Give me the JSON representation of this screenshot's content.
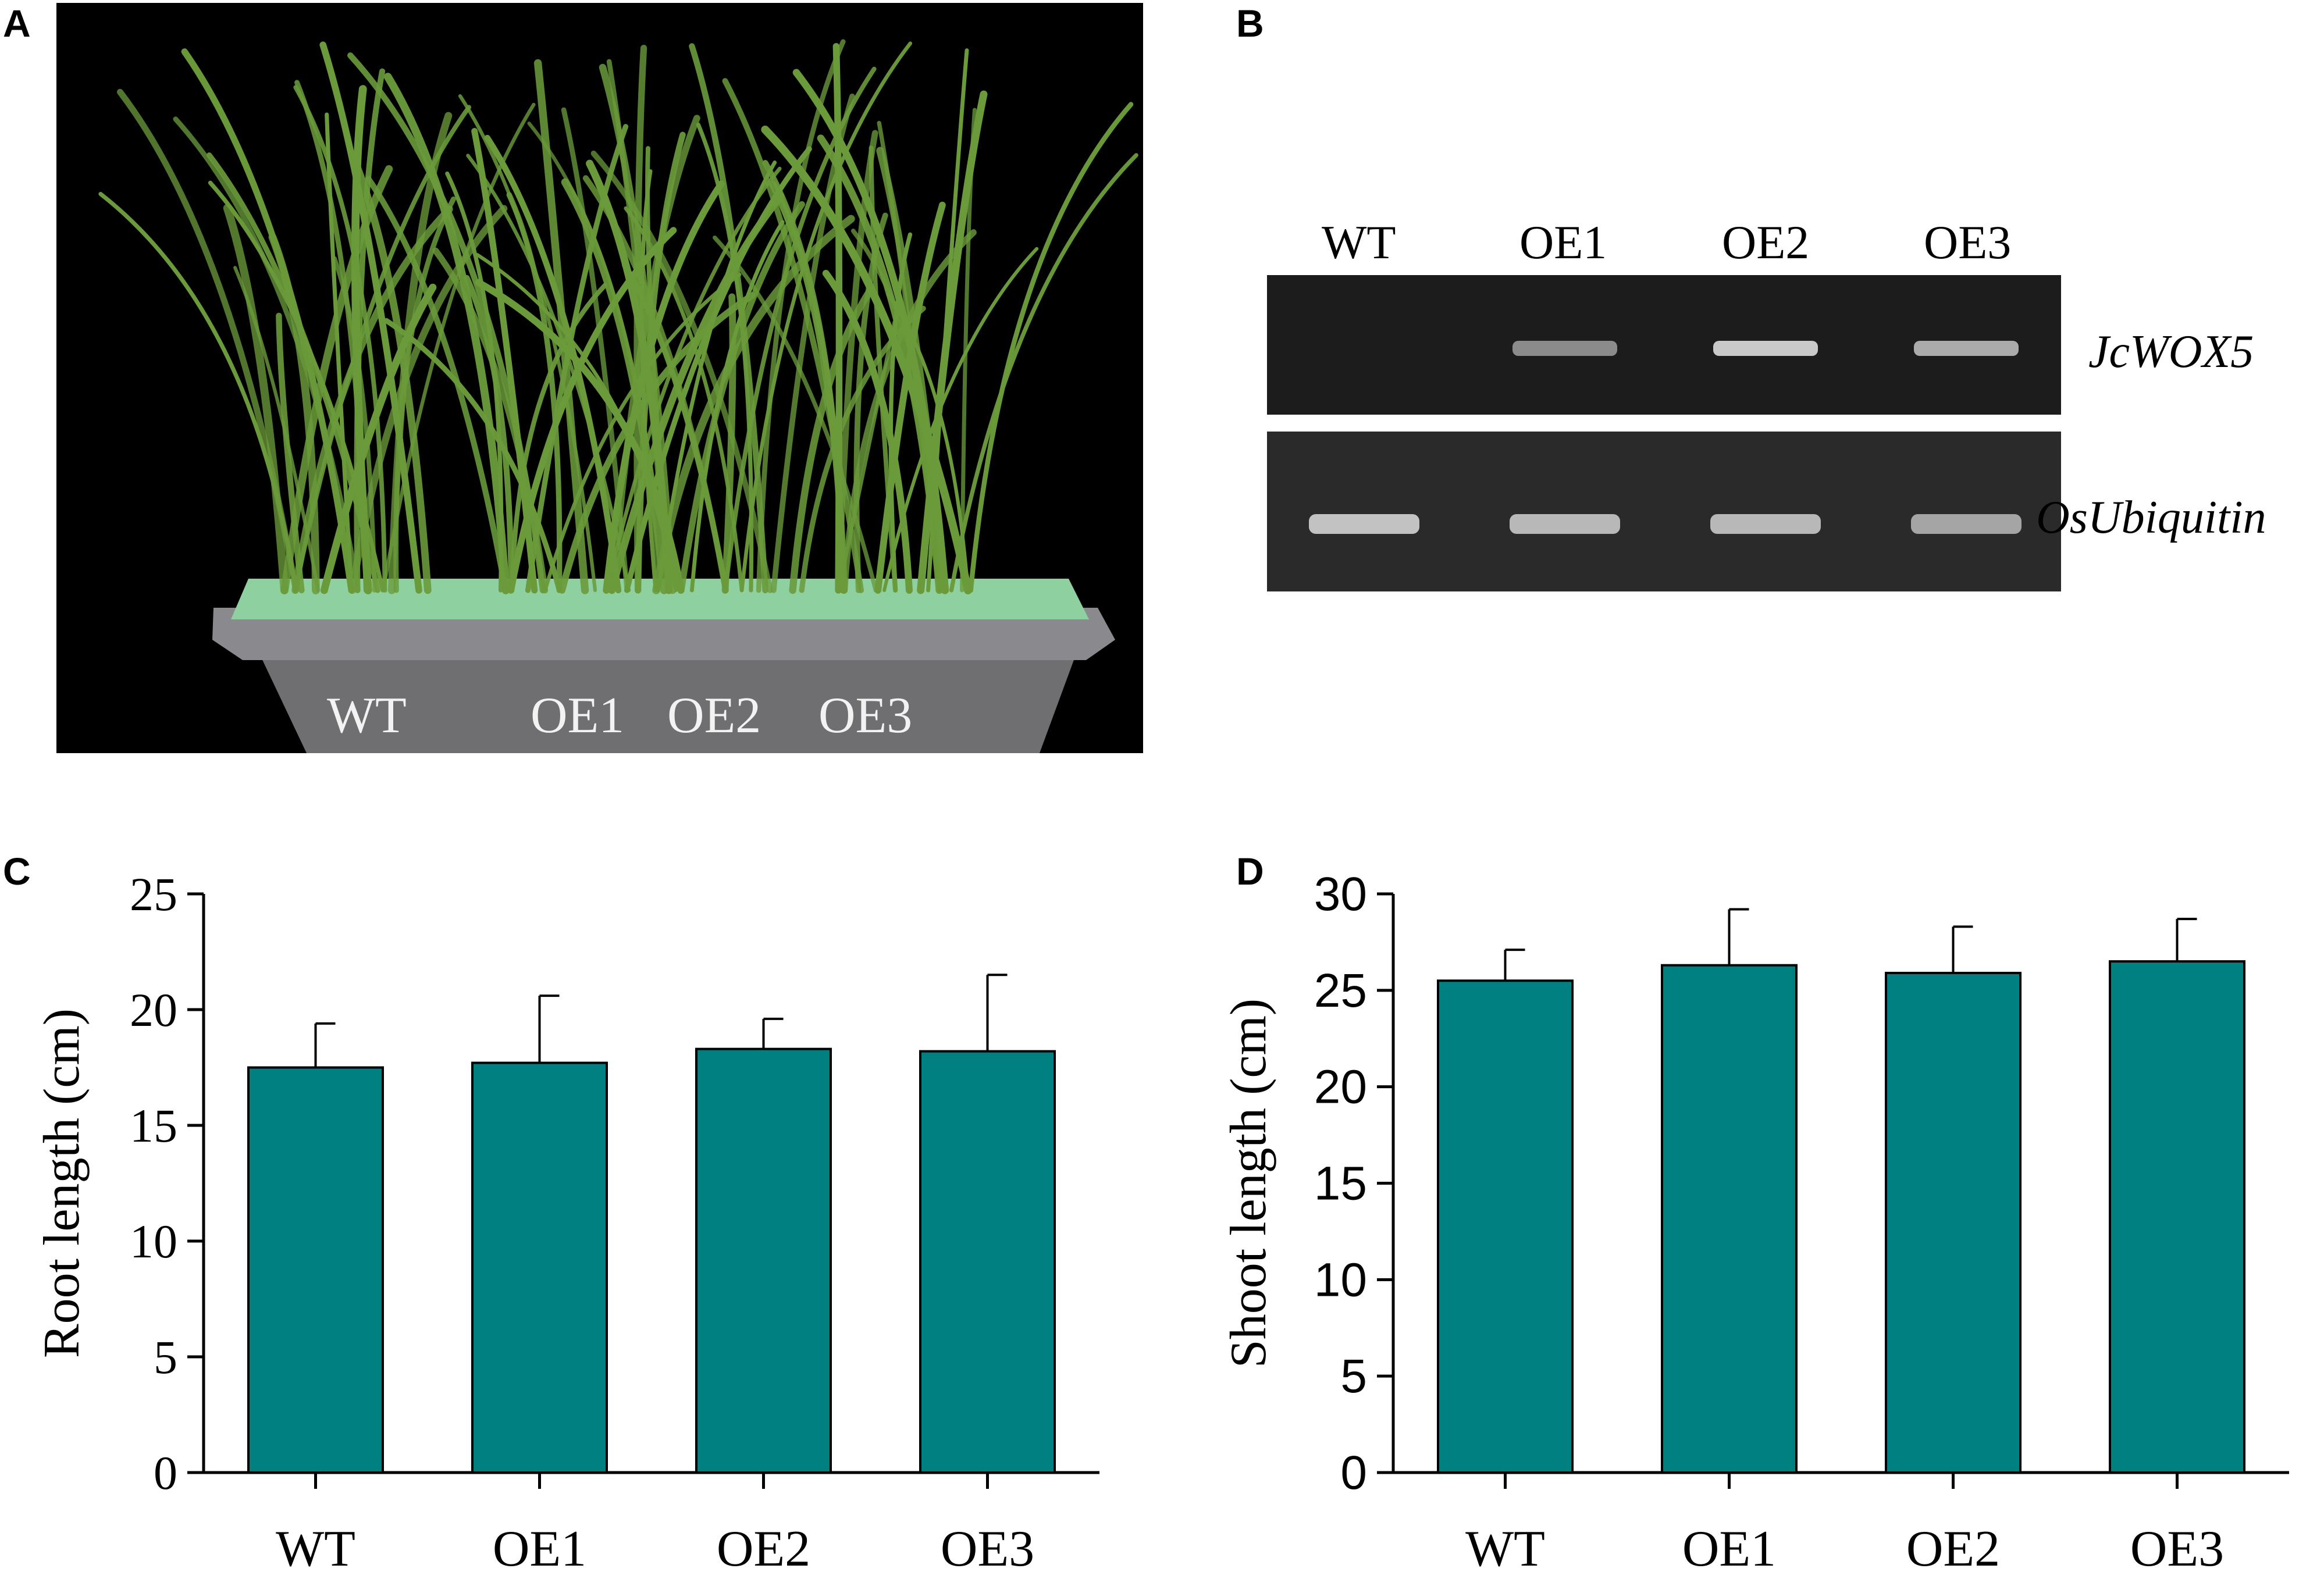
{
  "panels": {
    "A": {
      "letter": "A",
      "photo_labels": [
        "WT",
        "OE1",
        "OE2",
        "OE3"
      ]
    },
    "B": {
      "letter": "B",
      "lanes": [
        "WT",
        "OE1",
        "OE2",
        "OE3"
      ],
      "genes": [
        {
          "name": "JcWOX5",
          "band_intensity": [
            0.0,
            0.55,
            0.85,
            0.7
          ]
        },
        {
          "name": "OsUbiquitin",
          "band_intensity": [
            0.8,
            0.75,
            0.75,
            0.65
          ]
        }
      ]
    },
    "C": {
      "letter": "C"
    },
    "D": {
      "letter": "D"
    }
  },
  "colors": {
    "bar_fill": "#008080",
    "axis": "#000000",
    "gel_background": "#1c1c1c",
    "band": "#e8e8e8",
    "photo_background": "#000000",
    "plants": "#6a9a3a",
    "tray": "#7a7a7a"
  },
  "chart_data": [
    {
      "panel": "C",
      "type": "bar",
      "categories": [
        "WT",
        "OE1",
        "OE2",
        "OE3"
      ],
      "values": [
        17.5,
        17.7,
        18.3,
        18.2
      ],
      "errors": [
        1.9,
        2.9,
        1.3,
        3.3
      ],
      "ylabel": "Root length (cm)",
      "xlabel": "",
      "ylim": [
        0,
        25
      ],
      "yticks": [
        0,
        5,
        10,
        15,
        20,
        25
      ],
      "grid": false
    },
    {
      "panel": "D",
      "type": "bar",
      "categories": [
        "WT",
        "OE1",
        "OE2",
        "OE3"
      ],
      "values": [
        25.5,
        26.3,
        25.9,
        26.5
      ],
      "errors": [
        1.6,
        2.9,
        2.4,
        2.2
      ],
      "ylabel": "Shoot length (cm)",
      "xlabel": "",
      "ylim": [
        0,
        30
      ],
      "yticks": [
        0,
        5,
        10,
        15,
        20,
        25,
        30
      ],
      "grid": false
    }
  ]
}
